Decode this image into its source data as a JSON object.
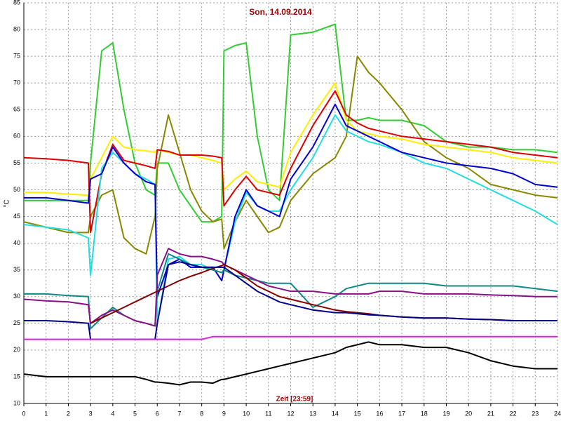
{
  "chart_data": {
    "type": "line",
    "title": "Son, 14.09.2014",
    "xlabel": "Zeit [23:59]",
    "ylabel": "°C",
    "x": [
      0,
      1,
      2,
      2.9,
      3,
      3.5,
      4,
      4.5,
      5,
      5.5,
      5.9,
      6,
      6.5,
      7,
      7.5,
      8,
      8.5,
      8.9,
      9,
      9.5,
      10,
      10.5,
      11,
      11.5,
      12,
      13,
      14,
      14.5,
      15,
      15.5,
      16,
      17,
      18,
      19,
      20,
      21,
      22,
      23,
      24
    ],
    "xlim": [
      0,
      24
    ],
    "xticks": [
      0,
      1,
      2,
      3,
      4,
      5,
      6,
      7,
      8,
      9,
      10,
      11,
      12,
      13,
      14,
      15,
      16,
      17,
      18,
      19,
      20,
      21,
      22,
      23,
      24
    ],
    "ylim": [
      10,
      85
    ],
    "yticks": [
      10,
      15,
      20,
      25,
      30,
      35,
      40,
      45,
      50,
      55,
      60,
      65,
      70,
      75,
      80,
      85
    ],
    "grid": true,
    "series": [
      {
        "color": "#33cc33",
        "values": [
          48,
          48,
          48,
          48,
          55,
          76,
          77.5,
          65,
          55,
          50,
          49,
          55,
          55,
          50,
          47,
          44,
          44,
          45,
          76,
          77,
          77.5,
          60,
          50,
          48,
          79,
          79.5,
          81,
          63,
          63,
          63.5,
          63,
          63,
          62,
          59,
          58,
          58,
          57.5,
          57.5,
          57
        ]
      },
      {
        "color": "#888800",
        "values": [
          44,
          43,
          42,
          42,
          45,
          49,
          50,
          41,
          39,
          38,
          45,
          54,
          64,
          57,
          50,
          46,
          44,
          44.5,
          39,
          44,
          48,
          45,
          42,
          43,
          48,
          53,
          56,
          60,
          75,
          72,
          70,
          65,
          59,
          56,
          54,
          51,
          50,
          49,
          48.5
        ]
      },
      {
        "color": "#ffee00",
        "values": [
          49.5,
          49.5,
          49.2,
          49,
          52,
          56,
          60,
          58,
          57.5,
          57.3,
          57,
          57.5,
          57,
          56.5,
          56.5,
          56,
          55.5,
          55,
          50,
          52,
          53.5,
          51.5,
          51,
          50.5,
          57,
          64,
          70,
          63,
          61,
          60.5,
          60,
          59.5,
          58.5,
          58,
          57.5,
          57,
          56,
          55.5,
          55
        ]
      },
      {
        "color": "#dd0000",
        "values": [
          56,
          55.8,
          55.5,
          55,
          42,
          53,
          58.5,
          55.5,
          55,
          54.5,
          54,
          57.5,
          57.2,
          56.5,
          56.5,
          56.5,
          56.3,
          56,
          47,
          50,
          52.5,
          50,
          49.5,
          49,
          54,
          62,
          68.5,
          64,
          62.5,
          61.5,
          61,
          60,
          59.5,
          59,
          58.5,
          58,
          57,
          56.5,
          56
        ]
      },
      {
        "color": "#22dddd",
        "values": [
          43.5,
          43,
          42.5,
          41,
          34,
          54,
          57,
          55,
          53,
          52,
          51,
          25,
          37,
          37.5,
          36,
          36,
          35,
          34.5,
          35,
          44,
          49.5,
          47,
          46,
          46,
          50,
          56,
          64,
          61,
          60,
          59,
          58.5,
          57,
          55,
          54,
          52,
          50,
          48,
          46,
          43.5
        ]
      },
      {
        "color": "#0000cc",
        "values": [
          48.5,
          48.5,
          48,
          47.5,
          52,
          53,
          58,
          55,
          53,
          51.5,
          51,
          30,
          36,
          37,
          35.5,
          35.5,
          35.5,
          33,
          35,
          45,
          50,
          47,
          46,
          45,
          52,
          58,
          66,
          62,
          61,
          60,
          59,
          57,
          56,
          55,
          54.5,
          54,
          53,
          51,
          50.5
        ]
      },
      {
        "color": "#118888",
        "values": [
          30.5,
          30.5,
          30.2,
          30,
          24,
          26,
          28,
          26.5,
          25.5,
          25,
          24.5,
          31,
          38,
          37,
          36,
          35.5,
          35,
          34.5,
          35,
          34,
          33.5,
          33,
          32.5,
          32.5,
          32.5,
          28,
          30,
          31.5,
          32,
          32.5,
          32.5,
          32.5,
          32.5,
          32,
          32,
          32,
          32,
          31.5,
          31
        ]
      },
      {
        "color": "#881188",
        "values": [
          29.5,
          29.2,
          29,
          28.5,
          25,
          26.5,
          27.5,
          26.5,
          25.5,
          25,
          24.5,
          34,
          39,
          38,
          37.5,
          37.5,
          37,
          36.5,
          36,
          35,
          34,
          33,
          32,
          31.5,
          31,
          31,
          30.5,
          30.5,
          30.5,
          30.5,
          31,
          31,
          30.5,
          30.5,
          30.5,
          30.3,
          30.2,
          30,
          30
        ]
      },
      {
        "color": "#880000",
        "values": [
          null,
          null,
          null,
          null,
          25,
          26,
          27,
          28,
          29,
          30,
          30.8,
          31,
          32,
          33,
          33.8,
          34.5,
          35.3,
          35.8,
          36,
          35,
          33.5,
          32,
          31,
          30,
          29.5,
          28.5,
          27.5,
          27.2,
          27,
          26.8,
          26.5,
          26.2,
          26,
          26,
          25.8,
          25.7,
          25.5,
          25.5,
          25.5
        ]
      },
      {
        "color": "#000088",
        "values": [
          25.5,
          25.5,
          25.3,
          25,
          22,
          22,
          22,
          22,
          22,
          22,
          22,
          25,
          36,
          36.5,
          36,
          35.5,
          35.5,
          35.5,
          35.5,
          34,
          32.5,
          31,
          30,
          29,
          28.5,
          27.5,
          27,
          27,
          26.8,
          26.6,
          26.5,
          26.2,
          26,
          26,
          25.8,
          25.7,
          25.5,
          25.5,
          25.5
        ]
      },
      {
        "color": "#dd22dd",
        "values": [
          22,
          22,
          22,
          22,
          22,
          22,
          22,
          22,
          22,
          22,
          22,
          22,
          22,
          22,
          22,
          22,
          22.5,
          22.5,
          22.5,
          22.5,
          22.5,
          22.5,
          22.5,
          22.5,
          22.5,
          22.5,
          22.5,
          22.5,
          22.5,
          22.5,
          22.5,
          22.5,
          22.5,
          22.5,
          22.5,
          22.5,
          22.5,
          22.5,
          22.5
        ]
      },
      {
        "color": "#000000",
        "values": [
          15.5,
          15,
          15,
          15,
          15,
          15,
          15,
          15,
          15,
          14.5,
          14,
          14,
          13.8,
          13.5,
          14,
          14,
          13.8,
          14.5,
          14.5,
          15,
          15.5,
          16,
          16.5,
          17,
          17.5,
          18.5,
          19.5,
          20.5,
          21,
          21.5,
          21,
          21,
          20.5,
          20.5,
          19.5,
          18,
          17,
          16.5,
          16.5
        ]
      }
    ]
  }
}
